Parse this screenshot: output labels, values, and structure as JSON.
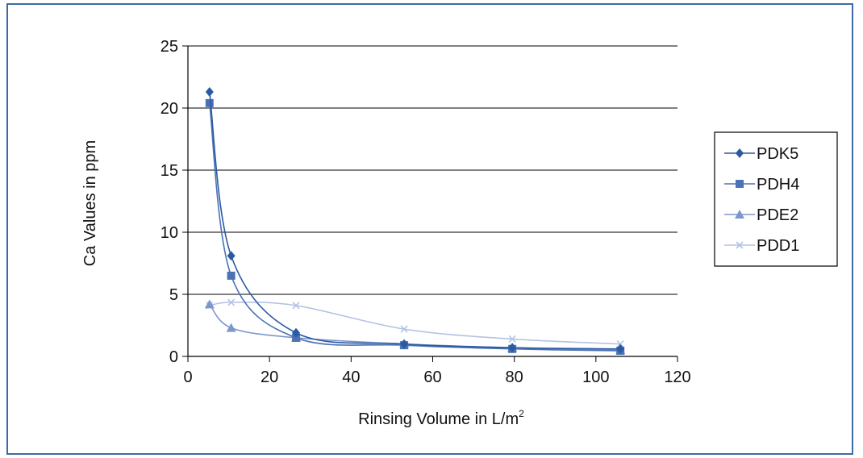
{
  "chart_data": {
    "type": "line",
    "xlabel": "Rinsing Volume in L/m",
    "xlabel_sup": "2",
    "ylabel": "Ca Values in ppm",
    "xlim": [
      0,
      120
    ],
    "ylim": [
      0,
      25
    ],
    "x_ticks": [
      "0",
      "20",
      "40",
      "60",
      "80",
      "100",
      "120"
    ],
    "y_ticks": [
      "0",
      "5",
      "10",
      "15",
      "20",
      "25"
    ],
    "grid": "horizontal",
    "legend_position": "right",
    "x": [
      5.3,
      10.6,
      26.5,
      53,
      79.5,
      106
    ],
    "series": [
      {
        "name": "PDK5",
        "marker": "diamond",
        "color": "#2b5aa3",
        "values": [
          21.3,
          8.1,
          1.9,
          1.0,
          0.7,
          0.6
        ]
      },
      {
        "name": "PDH4",
        "marker": "square",
        "color": "#4a72b5",
        "values": [
          20.4,
          6.5,
          1.5,
          0.9,
          0.6,
          0.45
        ]
      },
      {
        "name": "PDE2",
        "marker": "triangle",
        "color": "#7d97cc",
        "values": [
          4.2,
          2.3,
          1.5,
          1.0,
          0.7,
          0.5
        ]
      },
      {
        "name": "PDD1",
        "marker": "x",
        "color": "#b4c3e3",
        "values": [
          4.1,
          4.35,
          4.1,
          2.2,
          1.4,
          1.0
        ]
      }
    ]
  }
}
